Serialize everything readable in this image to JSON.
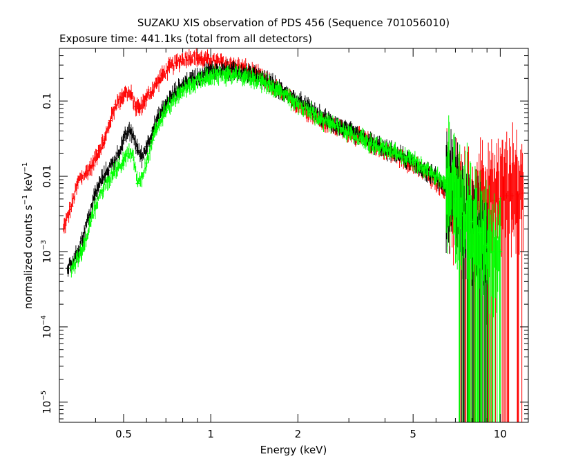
{
  "chart_data": {
    "type": "scatter",
    "title": "SUZAKU XIS observation of PDS 456 (Sequence 701056010)",
    "subtitle": "Exposure time: 441.1ks (total from all detectors)",
    "xlabel": "Energy (keV)",
    "ylabel": "normalized counts s-1 keV-1",
    "ylabel_parts": {
      "a": "normalized counts s",
      "exp1": "−1",
      "b": " keV",
      "exp2": "−1"
    },
    "xscale": "log",
    "yscale": "log",
    "xlim": [
      0.3,
      12.5
    ],
    "ylim": [
      5.4e-06,
      0.5
    ],
    "x_ticks": [
      {
        "value": 0.5,
        "label": "0.5"
      },
      {
        "value": 1,
        "label": "1"
      },
      {
        "value": 2,
        "label": "2"
      },
      {
        "value": 5,
        "label": "5"
      },
      {
        "value": 10,
        "label": "10"
      }
    ],
    "y_ticks": [
      {
        "value": 0.1,
        "label": "0.1"
      },
      {
        "value": 0.01,
        "label": "0.01"
      },
      {
        "value": 0.001,
        "base": "10",
        "exp": "−3"
      },
      {
        "value": 0.0001,
        "base": "10",
        "exp": "−4"
      },
      {
        "value": 1e-05,
        "base": "10",
        "exp": "−5"
      }
    ],
    "series": [
      {
        "color": "#ff0000",
        "x": [
          0.31,
          0.33,
          0.35,
          0.37,
          0.39,
          0.41,
          0.43,
          0.45,
          0.47,
          0.49,
          0.51,
          0.53,
          0.55,
          0.57,
          0.59,
          0.62,
          0.65,
          0.68,
          0.72,
          0.76,
          0.8,
          0.85,
          0.9,
          0.95,
          1.0,
          1.05,
          1.1,
          1.2,
          1.3,
          1.4,
          1.5,
          1.6,
          1.7,
          1.8,
          1.9,
          2.0,
          2.2,
          2.4,
          2.6,
          2.8,
          3.0,
          3.3,
          3.6,
          4.0,
          4.5,
          5.0,
          5.5,
          6.0,
          6.5,
          7.0,
          7.5,
          8.0,
          8.5,
          9.0,
          9.5,
          10.0,
          10.5,
          11.0,
          11.5,
          12.0
        ],
        "y": [
          0.002,
          0.004,
          0.009,
          0.011,
          0.014,
          0.022,
          0.03,
          0.055,
          0.09,
          0.11,
          0.13,
          0.12,
          0.085,
          0.08,
          0.1,
          0.13,
          0.17,
          0.22,
          0.28,
          0.32,
          0.36,
          0.38,
          0.37,
          0.35,
          0.34,
          0.33,
          0.32,
          0.3,
          0.27,
          0.24,
          0.2,
          0.17,
          0.14,
          0.12,
          0.1,
          0.09,
          0.07,
          0.055,
          0.048,
          0.042,
          0.038,
          0.032,
          0.027,
          0.022,
          0.018,
          0.014,
          0.011,
          0.008,
          0.0065,
          0.0055,
          0.0035,
          0.0035,
          0.004,
          0.0045,
          0.0048,
          0.005,
          0.0055,
          0.0055,
          0.0058,
          0.006
        ]
      },
      {
        "color": "#000000",
        "x": [
          0.32,
          0.34,
          0.36,
          0.38,
          0.4,
          0.42,
          0.44,
          0.46,
          0.48,
          0.5,
          0.52,
          0.54,
          0.56,
          0.58,
          0.6,
          0.63,
          0.66,
          0.7,
          0.74,
          0.78,
          0.82,
          0.87,
          0.92,
          0.97,
          1.0,
          1.05,
          1.1,
          1.2,
          1.3,
          1.4,
          1.5,
          1.6,
          1.7,
          1.8,
          1.9,
          2.0,
          2.2,
          2.4,
          2.6,
          2.8,
          3.0,
          3.3,
          3.6,
          4.0,
          4.5,
          5.0,
          5.5,
          6.0,
          6.5,
          7.0,
          7.5,
          8.0,
          8.5,
          9.0
        ],
        "y": [
          0.0006,
          0.0008,
          0.0015,
          0.003,
          0.006,
          0.009,
          0.012,
          0.015,
          0.02,
          0.03,
          0.04,
          0.035,
          0.022,
          0.018,
          0.025,
          0.04,
          0.06,
          0.09,
          0.12,
          0.15,
          0.18,
          0.2,
          0.22,
          0.24,
          0.25,
          0.26,
          0.26,
          0.25,
          0.24,
          0.22,
          0.2,
          0.18,
          0.15,
          0.13,
          0.11,
          0.1,
          0.08,
          0.062,
          0.053,
          0.046,
          0.04,
          0.034,
          0.028,
          0.023,
          0.019,
          0.015,
          0.012,
          0.0095,
          0.007,
          0.005,
          0.003,
          0.002,
          0.0015,
          0.001
        ]
      },
      {
        "color": "#00ff00",
        "x": [
          0.33,
          0.36,
          0.39,
          0.42,
          0.44,
          0.46,
          0.48,
          0.5,
          0.52,
          0.54,
          0.56,
          0.58,
          0.6,
          0.63,
          0.66,
          0.7,
          0.74,
          0.78,
          0.82,
          0.87,
          0.92,
          0.97,
          1.0,
          1.05,
          1.1,
          1.2,
          1.3,
          1.4,
          1.5,
          1.6,
          1.7,
          1.8,
          1.9,
          2.0,
          2.2,
          2.4,
          2.6,
          2.8,
          3.0,
          3.3,
          3.6,
          4.0,
          4.5,
          5.0,
          5.5,
          6.0,
          6.5,
          7.0,
          7.5,
          8.0,
          8.5,
          9.0,
          9.5,
          10.0
        ],
        "y": [
          0.0006,
          0.001,
          0.003,
          0.006,
          0.009,
          0.011,
          0.013,
          0.016,
          0.02,
          0.018,
          0.008,
          0.01,
          0.015,
          0.03,
          0.05,
          0.075,
          0.1,
          0.12,
          0.15,
          0.17,
          0.19,
          0.2,
          0.21,
          0.22,
          0.22,
          0.22,
          0.21,
          0.2,
          0.18,
          0.16,
          0.14,
          0.12,
          0.1,
          0.09,
          0.072,
          0.058,
          0.05,
          0.044,
          0.038,
          0.032,
          0.027,
          0.023,
          0.019,
          0.016,
          0.013,
          0.01,
          0.008,
          0.005,
          0.003,
          0.0025,
          0.0018,
          0.0012,
          0.001,
          0.001
        ]
      }
    ]
  }
}
